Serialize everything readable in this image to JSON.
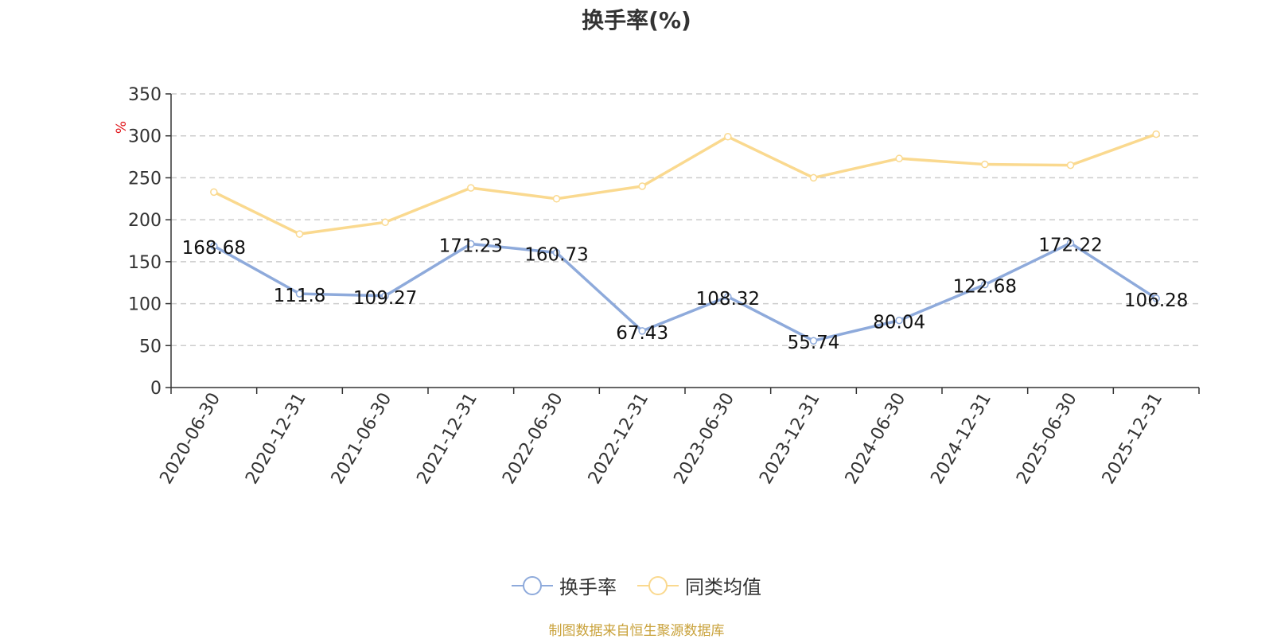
{
  "chart_data": {
    "type": "line",
    "title": "换手率(%)",
    "ylabel": "%",
    "ylim": [
      0,
      350
    ],
    "yticks": [
      0,
      50,
      100,
      150,
      200,
      250,
      300,
      350
    ],
    "grid": true,
    "legend_position": "bottom",
    "categories": [
      "2020-06-30",
      "2020-12-31",
      "2021-06-30",
      "2021-12-31",
      "2022-06-30",
      "2022-12-31",
      "2023-06-30",
      "2023-12-31",
      "2024-06-30",
      "2024-12-31",
      "2025-06-30",
      "2025-12-31"
    ],
    "series": [
      {
        "name": "换手率",
        "color": "#8eaadb",
        "values": [
          168.68,
          111.8,
          109.27,
          171.23,
          160.73,
          67.43,
          108.32,
          55.74,
          80.04,
          122.68,
          172.22,
          106.28
        ],
        "labels": [
          "168.68",
          "111.8",
          "109.27",
          "171.23",
          "160.73",
          "67.43",
          "108.32",
          "55.74",
          "80.04",
          "122.68",
          "172.22",
          "106.28"
        ]
      },
      {
        "name": "同类均值",
        "color": "#fad98f",
        "values": [
          233,
          183,
          197,
          238,
          225,
          240,
          299,
          250,
          273,
          266,
          265,
          302
        ]
      }
    ]
  },
  "footer": {
    "source": "制图数据来自恒生聚源数据库"
  }
}
